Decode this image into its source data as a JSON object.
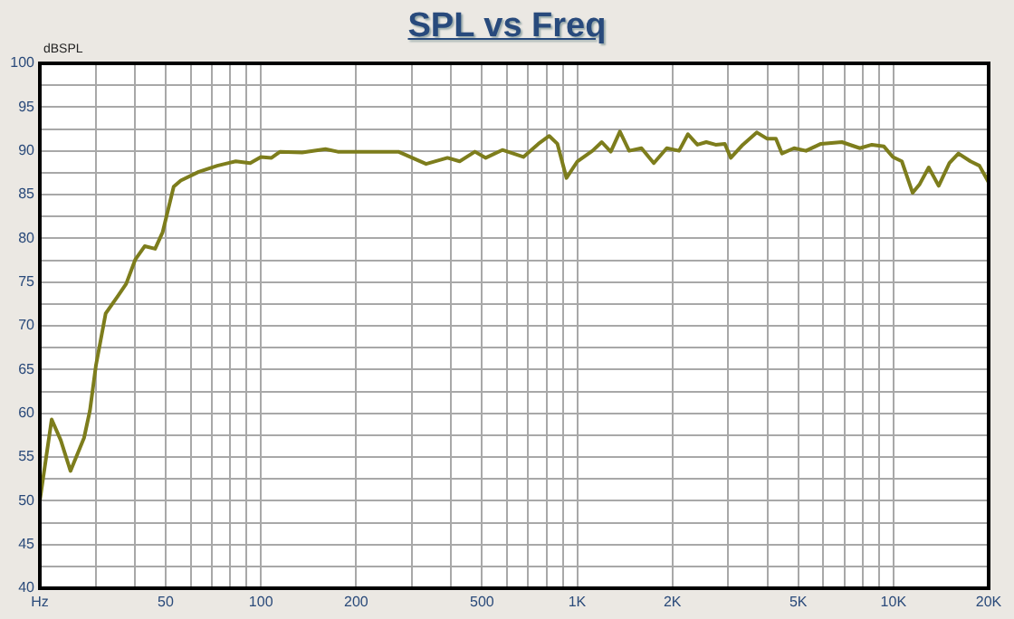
{
  "chart_data": {
    "type": "line",
    "title": "SPL vs Freq",
    "ylabel": "dBSPL",
    "log": "x",
    "grid": true,
    "legend": false,
    "marker": "none",
    "line_style": "solid",
    "xlim": [
      20,
      20000
    ],
    "xticks": [
      {
        "value": 20,
        "label": "Hz"
      },
      {
        "value": 30,
        "label": null
      },
      {
        "value": 40,
        "label": null
      },
      50,
      {
        "value": 60,
        "label": null
      },
      {
        "value": 70,
        "label": null
      },
      {
        "value": 80,
        "label": null
      },
      {
        "value": 90,
        "label": null
      },
      100,
      200,
      {
        "value": 300,
        "label": null
      },
      {
        "value": 400,
        "label": null
      },
      500,
      {
        "value": 600,
        "label": null
      },
      {
        "value": 700,
        "label": null
      },
      {
        "value": 800,
        "label": null
      },
      {
        "value": 900,
        "label": null
      },
      {
        "value": 1000,
        "label": "1K"
      },
      {
        "value": 2000,
        "label": "2K"
      },
      {
        "value": 3000,
        "label": null
      },
      {
        "value": 4000,
        "label": null
      },
      {
        "value": 5000,
        "label": "5K"
      },
      {
        "value": 6000,
        "label": null
      },
      {
        "value": 7000,
        "label": null
      },
      {
        "value": 8000,
        "label": null
      },
      {
        "value": 9000,
        "label": null
      },
      {
        "value": 10000,
        "label": "10K"
      },
      {
        "value": 20000,
        "label": "20K"
      }
    ],
    "ylim": [
      40,
      100
    ],
    "yticks": [
      40,
      {
        "value": 42.5,
        "label": null
      },
      45,
      {
        "value": 47.5,
        "label": null
      },
      50,
      {
        "value": 52.5,
        "label": null
      },
      55,
      {
        "value": 57.5,
        "label": null
      },
      60,
      {
        "value": 62.5,
        "label": null
      },
      65,
      {
        "value": 67.5,
        "label": null
      },
      70,
      {
        "value": 72.5,
        "label": null
      },
      75,
      {
        "value": 77.5,
        "label": null
      },
      80,
      {
        "value": 82.5,
        "label": null
      },
      85,
      {
        "value": 87.5,
        "label": null
      },
      90,
      {
        "value": 92.5,
        "label": null
      },
      95,
      {
        "value": 97.5,
        "label": null
      },
      100
    ],
    "series": [
      {
        "color": "#7d7d1c",
        "x": [
          20,
          21.8,
          23.3,
          25,
          26.4,
          27.6,
          28.8,
          30.1,
          32.3,
          35.3,
          37.5,
          40.1,
          42.9,
          46.3,
          48.9,
          53,
          55.8,
          63.6,
          72.8,
          83.3,
          92.5,
          100,
          108,
          115,
          135,
          160,
          175,
          208,
          272,
          333,
          389,
          425,
          475,
          514,
          580,
          676,
          754,
          816,
          866,
          925,
          1002,
          1118,
          1196,
          1277,
          1365,
          1460,
          1597,
          1747,
          1920,
          2100,
          2240,
          2400,
          2560,
          2740,
          2930,
          3060,
          3340,
          3700,
          3980,
          4250,
          4440,
          4850,
          5290,
          5900,
          6870,
          7830,
          8550,
          9330,
          9960,
          10630,
          11500,
          12110,
          12930,
          13900,
          15030,
          16050,
          17520,
          18700,
          20000
        ],
        "values": [
          50,
          59.3,
          56.9,
          53.4,
          55.5,
          57.2,
          60.3,
          65.5,
          71.4,
          73.4,
          74.8,
          77.6,
          79.1,
          78.8,
          80.7,
          85.9,
          86.6,
          87.6,
          88.3,
          88.8,
          88.6,
          89.3,
          89.2,
          89.9,
          89.8,
          90.2,
          89.9,
          89.9,
          89.9,
          88.5,
          89.2,
          88.8,
          89.9,
          89.2,
          90.1,
          89.3,
          90.8,
          91.7,
          90.8,
          86.9,
          88.8,
          90,
          91,
          89.9,
          92.2,
          90,
          90.3,
          88.6,
          90.3,
          90,
          91.9,
          90.7,
          91,
          90.7,
          90.8,
          89.2,
          90.7,
          92.1,
          91.4,
          91.4,
          89.7,
          90.3,
          90,
          90.8,
          91,
          90.3,
          90.7,
          90.5,
          89.3,
          88.8,
          85.2,
          86.2,
          88.1,
          86,
          88.6,
          89.7,
          88.8,
          88.3,
          86.4
        ]
      }
    ]
  }
}
